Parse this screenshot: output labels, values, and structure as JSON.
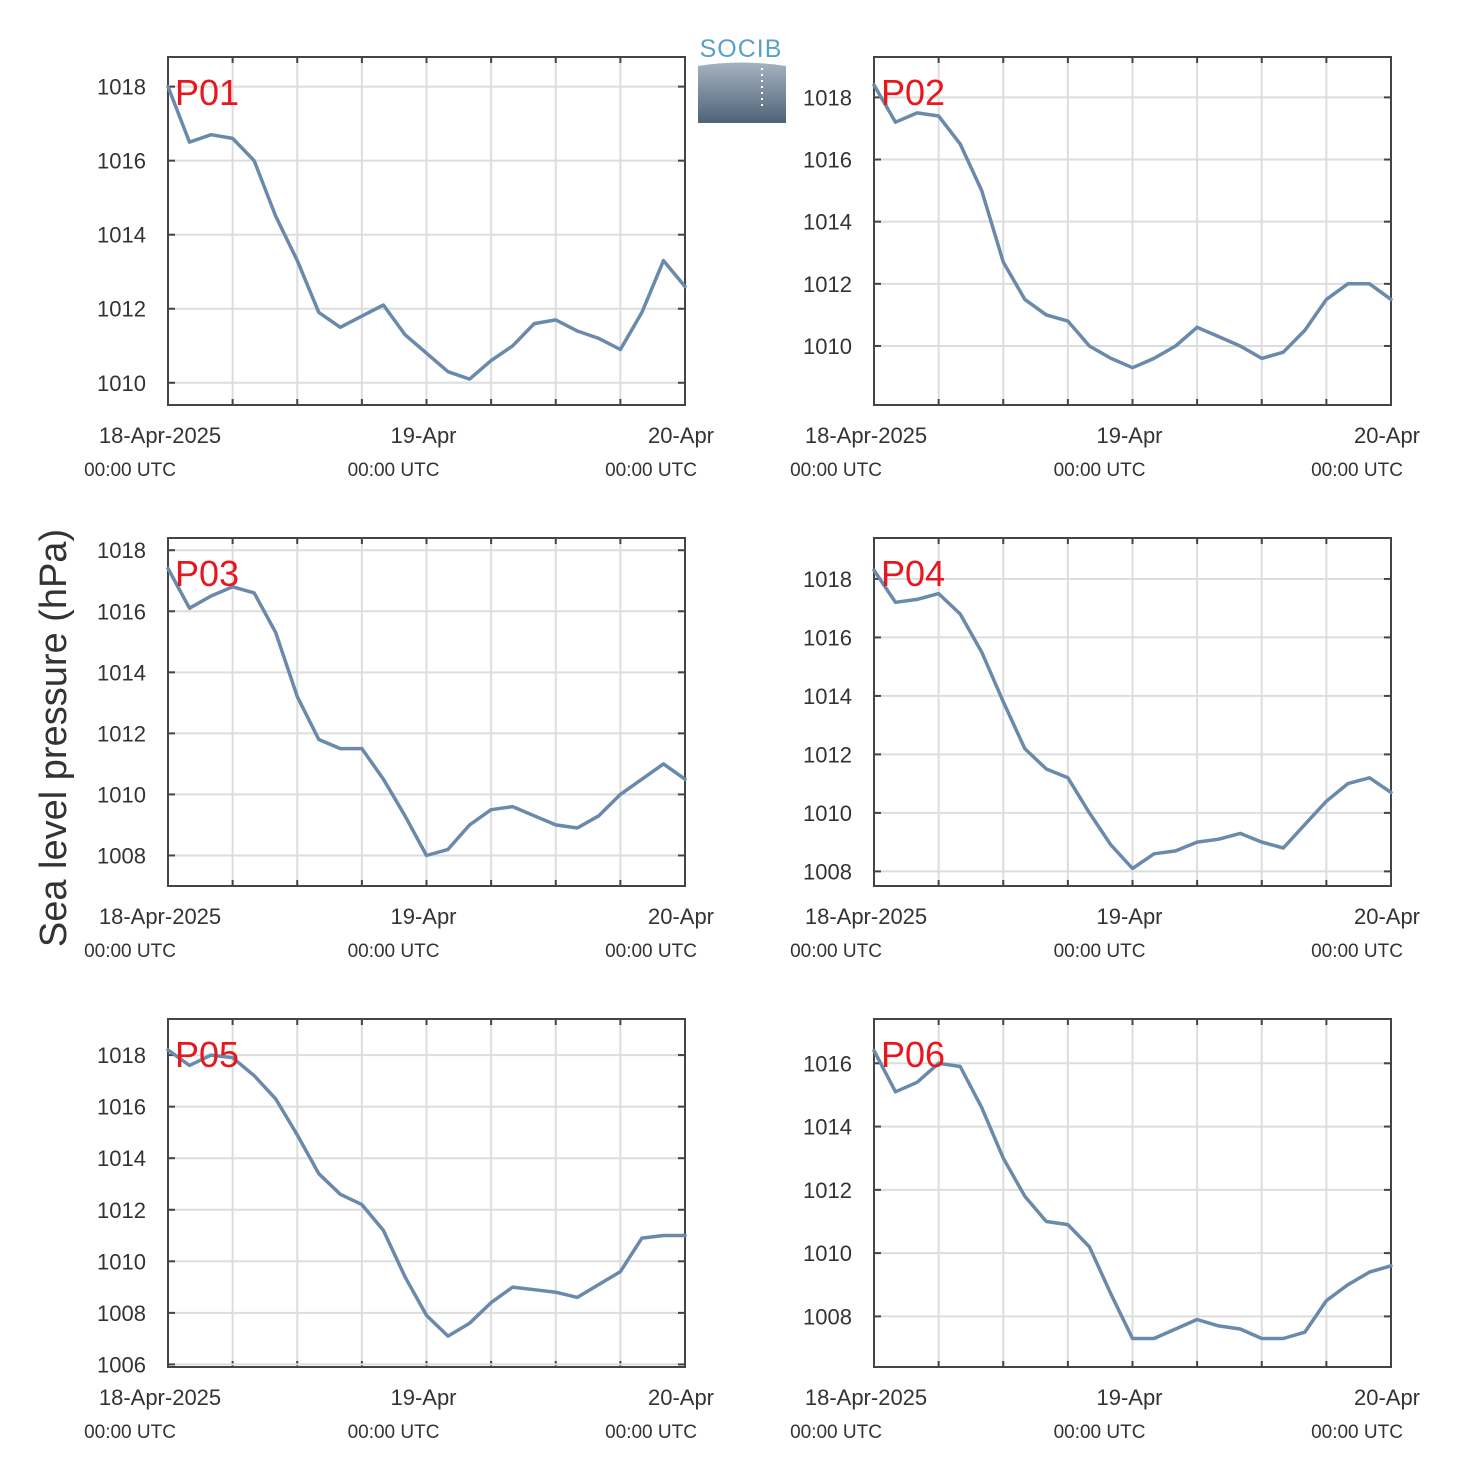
{
  "logo": {
    "text": "SOCIB"
  },
  "y_title": "Sea level pressure (hPa)",
  "colors": {
    "line": "#6a8aab",
    "grid": "#dddddd",
    "frame": "#444444",
    "label": "#e8161d",
    "text": "#333333"
  },
  "chart_data": [
    {
      "type": "line",
      "label": "P01",
      "x_ticks": [
        {
          "main": "18-Apr-2025",
          "sub": "00:00 UTC"
        },
        {
          "main": "19-Apr",
          "sub": "00:00 UTC"
        },
        {
          "main": "20-Apr",
          "sub": "00:00 UTC"
        }
      ],
      "ylim": [
        1009.4,
        1018.8
      ],
      "y_ticks": [
        1010,
        1012,
        1014,
        1016,
        1018
      ],
      "x": [
        0,
        2,
        4,
        6,
        8,
        10,
        12,
        14,
        16,
        18,
        20,
        22,
        24,
        26,
        28,
        30,
        32,
        34,
        36,
        38,
        40,
        42,
        44,
        46,
        48
      ],
      "values": [
        1018.0,
        1016.5,
        1016.7,
        1016.6,
        1016.0,
        1014.5,
        1013.3,
        1011.9,
        1011.5,
        1011.8,
        1012.1,
        1011.3,
        1010.8,
        1010.3,
        1010.1,
        1010.6,
        1011.0,
        1011.6,
        1011.7,
        1011.4,
        1011.2,
        1010.9,
        1011.9,
        1013.3,
        1012.6
      ]
    },
    {
      "type": "line",
      "label": "P02",
      "x_ticks": [
        {
          "main": "18-Apr-2025",
          "sub": "00:00 UTC"
        },
        {
          "main": "19-Apr",
          "sub": "00:00 UTC"
        },
        {
          "main": "20-Apr",
          "sub": "00:00 UTC"
        }
      ],
      "ylim": [
        1008.1,
        1019.3
      ],
      "y_ticks": [
        1010,
        1012,
        1014,
        1016,
        1018
      ],
      "x": [
        0,
        2,
        4,
        6,
        8,
        10,
        12,
        14,
        16,
        18,
        20,
        22,
        24,
        26,
        28,
        30,
        32,
        34,
        36,
        38,
        40,
        42,
        44,
        46,
        48
      ],
      "values": [
        1018.4,
        1017.2,
        1017.5,
        1017.4,
        1016.5,
        1015.0,
        1012.7,
        1011.5,
        1011.0,
        1010.8,
        1010.0,
        1009.6,
        1009.3,
        1009.6,
        1010.0,
        1010.6,
        1010.3,
        1010.0,
        1009.6,
        1009.8,
        1010.5,
        1011.5,
        1012.0,
        1012.0,
        1011.5
      ]
    },
    {
      "type": "line",
      "label": "P03",
      "x_ticks": [
        {
          "main": "18-Apr-2025",
          "sub": "00:00 UTC"
        },
        {
          "main": "19-Apr",
          "sub": "00:00 UTC"
        },
        {
          "main": "20-Apr",
          "sub": "00:00 UTC"
        }
      ],
      "ylim": [
        1007.0,
        1018.4
      ],
      "y_ticks": [
        1008,
        1010,
        1012,
        1014,
        1016,
        1018
      ],
      "x": [
        0,
        2,
        4,
        6,
        8,
        10,
        12,
        14,
        16,
        18,
        20,
        22,
        24,
        26,
        28,
        30,
        32,
        34,
        36,
        38,
        40,
        42,
        44,
        46,
        48
      ],
      "values": [
        1017.4,
        1016.1,
        1016.5,
        1016.8,
        1016.6,
        1015.3,
        1013.2,
        1011.8,
        1011.5,
        1011.5,
        1010.5,
        1009.3,
        1008.0,
        1008.2,
        1009.0,
        1009.5,
        1009.6,
        1009.3,
        1009.0,
        1008.9,
        1009.3,
        1010.0,
        1010.5,
        1011.0,
        1010.5
      ]
    },
    {
      "type": "line",
      "label": "P04",
      "x_ticks": [
        {
          "main": "18-Apr-2025",
          "sub": "00:00 UTC"
        },
        {
          "main": "19-Apr",
          "sub": "00:00 UTC"
        },
        {
          "main": "20-Apr",
          "sub": "00:00 UTC"
        }
      ],
      "ylim": [
        1007.5,
        1019.4
      ],
      "y_ticks": [
        1008,
        1010,
        1012,
        1014,
        1016,
        1018
      ],
      "x": [
        0,
        2,
        4,
        6,
        8,
        10,
        12,
        14,
        16,
        18,
        20,
        22,
        24,
        26,
        28,
        30,
        32,
        34,
        36,
        38,
        40,
        42,
        44,
        46,
        48
      ],
      "values": [
        1018.3,
        1017.2,
        1017.3,
        1017.5,
        1016.8,
        1015.5,
        1013.8,
        1012.2,
        1011.5,
        1011.2,
        1010.0,
        1008.9,
        1008.1,
        1008.6,
        1008.7,
        1009.0,
        1009.1,
        1009.3,
        1009.0,
        1008.8,
        1009.6,
        1010.4,
        1011.0,
        1011.2,
        1010.7
      ]
    },
    {
      "type": "line",
      "label": "P05",
      "x_ticks": [
        {
          "main": "18-Apr-2025",
          "sub": "00:00 UTC"
        },
        {
          "main": "19-Apr",
          "sub": "00:00 UTC"
        },
        {
          "main": "20-Apr",
          "sub": "00:00 UTC"
        }
      ],
      "ylim": [
        1005.9,
        1019.4
      ],
      "y_ticks": [
        1006,
        1008,
        1010,
        1012,
        1014,
        1016,
        1018
      ],
      "x": [
        0,
        2,
        4,
        6,
        8,
        10,
        12,
        14,
        16,
        18,
        20,
        22,
        24,
        26,
        28,
        30,
        32,
        34,
        36,
        38,
        40,
        42,
        44,
        46,
        48
      ],
      "values": [
        1018.2,
        1017.6,
        1018.0,
        1017.9,
        1017.2,
        1016.3,
        1014.9,
        1013.4,
        1012.6,
        1012.2,
        1011.2,
        1009.4,
        1007.9,
        1007.1,
        1007.6,
        1008.4,
        1009.0,
        1008.9,
        1008.8,
        1008.6,
        1009.1,
        1009.6,
        1010.9,
        1011.0,
        1011.0
      ]
    },
    {
      "type": "line",
      "label": "P06",
      "x_ticks": [
        {
          "main": "18-Apr-2025",
          "sub": "00:00 UTC"
        },
        {
          "main": "19-Apr",
          "sub": "00:00 UTC"
        },
        {
          "main": "20-Apr",
          "sub": "00:00 UTC"
        }
      ],
      "ylim": [
        1006.4,
        1017.4
      ],
      "y_ticks": [
        1008,
        1010,
        1012,
        1014,
        1016
      ],
      "x": [
        0,
        2,
        4,
        6,
        8,
        10,
        12,
        14,
        16,
        18,
        20,
        22,
        24,
        26,
        28,
        30,
        32,
        34,
        36,
        38,
        40,
        42,
        44,
        46,
        48
      ],
      "values": [
        1016.4,
        1015.1,
        1015.4,
        1016.0,
        1015.9,
        1014.6,
        1013.0,
        1011.8,
        1011.0,
        1010.9,
        1010.2,
        1008.7,
        1007.3,
        1007.3,
        1007.6,
        1007.9,
        1007.7,
        1007.6,
        1007.3,
        1007.3,
        1007.5,
        1008.5,
        1009.0,
        1009.4,
        1009.6
      ]
    }
  ]
}
